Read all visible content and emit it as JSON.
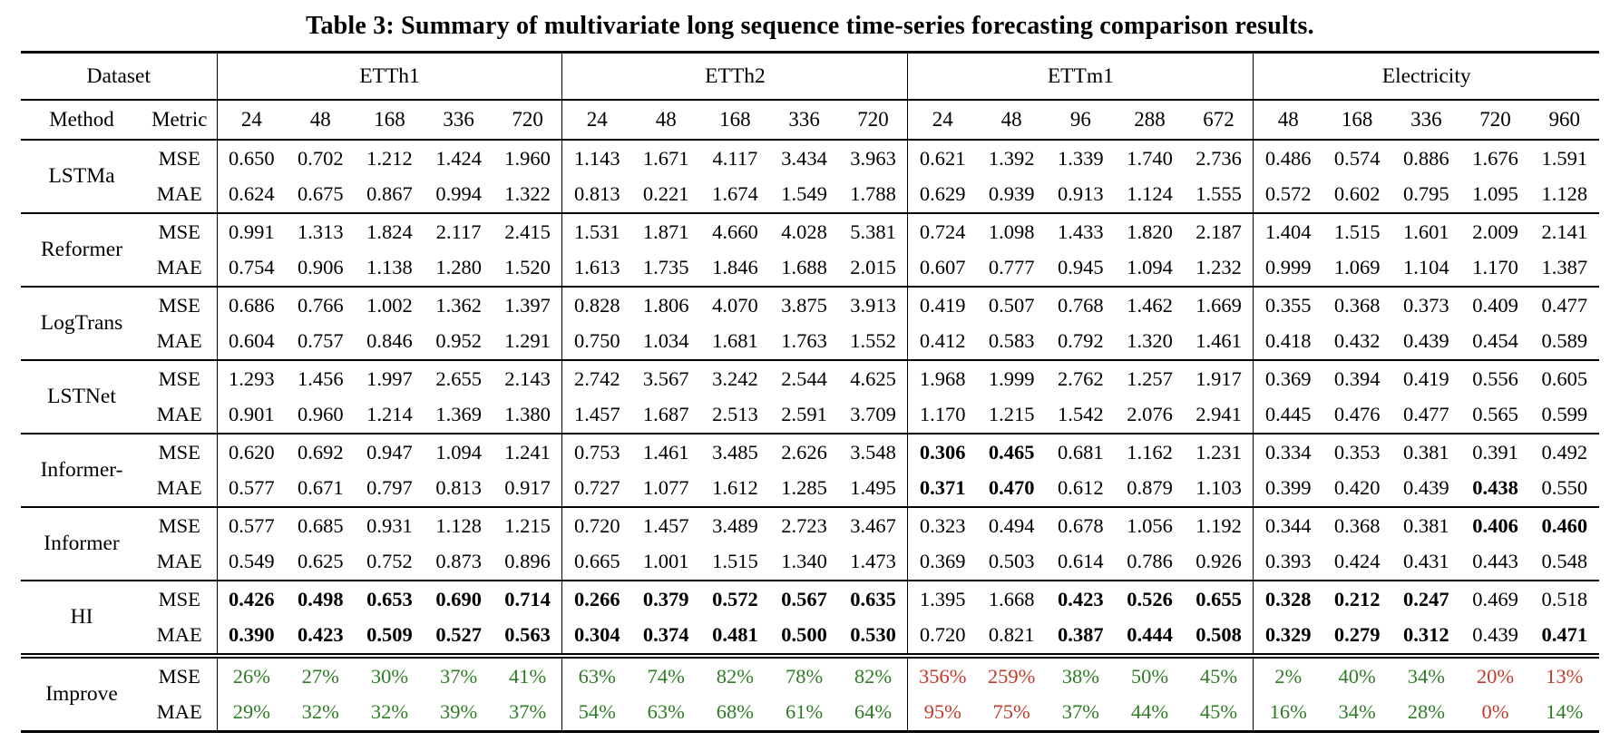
{
  "title": "Table 3: Summary of multivariate long sequence time-series forecasting comparison results.",
  "colors": {
    "improve_positive": "#2e7d25",
    "improve_negative": "#c23b2a",
    "text": "#000000"
  },
  "header": {
    "dataset_label": "Dataset",
    "method_label": "Method",
    "metric_label": "Metric",
    "groups": [
      {
        "name": "ETTh1",
        "horizons": [
          "24",
          "48",
          "168",
          "336",
          "720"
        ]
      },
      {
        "name": "ETTh2",
        "horizons": [
          "24",
          "48",
          "168",
          "336",
          "720"
        ]
      },
      {
        "name": "ETTm1",
        "horizons": [
          "24",
          "48",
          "96",
          "288",
          "672"
        ]
      },
      {
        "name": "Electricity",
        "horizons": [
          "48",
          "168",
          "336",
          "720",
          "960"
        ]
      }
    ]
  },
  "rows": [
    {
      "method": "LSTMa",
      "sub": [
        {
          "metric": "MSE",
          "values": [
            "0.650",
            "0.702",
            "1.212",
            "1.424",
            "1.960",
            "1.143",
            "1.671",
            "4.117",
            "3.434",
            "3.963",
            "0.621",
            "1.392",
            "1.339",
            "1.740",
            "2.736",
            "0.486",
            "0.574",
            "0.886",
            "1.676",
            "1.591"
          ],
          "bold": []
        },
        {
          "metric": "MAE",
          "values": [
            "0.624",
            "0.675",
            "0.867",
            "0.994",
            "1.322",
            "0.813",
            "0.221",
            "1.674",
            "1.549",
            "1.788",
            "0.629",
            "0.939",
            "0.913",
            "1.124",
            "1.555",
            "0.572",
            "0.602",
            "0.795",
            "1.095",
            "1.128"
          ],
          "bold": []
        }
      ]
    },
    {
      "method": "Reformer",
      "sub": [
        {
          "metric": "MSE",
          "values": [
            "0.991",
            "1.313",
            "1.824",
            "2.117",
            "2.415",
            "1.531",
            "1.871",
            "4.660",
            "4.028",
            "5.381",
            "0.724",
            "1.098",
            "1.433",
            "1.820",
            "2.187",
            "1.404",
            "1.515",
            "1.601",
            "2.009",
            "2.141"
          ],
          "bold": []
        },
        {
          "metric": "MAE",
          "values": [
            "0.754",
            "0.906",
            "1.138",
            "1.280",
            "1.520",
            "1.613",
            "1.735",
            "1.846",
            "1.688",
            "2.015",
            "0.607",
            "0.777",
            "0.945",
            "1.094",
            "1.232",
            "0.999",
            "1.069",
            "1.104",
            "1.170",
            "1.387"
          ],
          "bold": []
        }
      ]
    },
    {
      "method": "LogTrans",
      "sub": [
        {
          "metric": "MSE",
          "values": [
            "0.686",
            "0.766",
            "1.002",
            "1.362",
            "1.397",
            "0.828",
            "1.806",
            "4.070",
            "3.875",
            "3.913",
            "0.419",
            "0.507",
            "0.768",
            "1.462",
            "1.669",
            "0.355",
            "0.368",
            "0.373",
            "0.409",
            "0.477"
          ],
          "bold": []
        },
        {
          "metric": "MAE",
          "values": [
            "0.604",
            "0.757",
            "0.846",
            "0.952",
            "1.291",
            "0.750",
            "1.034",
            "1.681",
            "1.763",
            "1.552",
            "0.412",
            "0.583",
            "0.792",
            "1.320",
            "1.461",
            "0.418",
            "0.432",
            "0.439",
            "0.454",
            "0.589"
          ],
          "bold": []
        }
      ]
    },
    {
      "method": "LSTNet",
      "sub": [
        {
          "metric": "MSE",
          "values": [
            "1.293",
            "1.456",
            "1.997",
            "2.655",
            "2.143",
            "2.742",
            "3.567",
            "3.242",
            "2.544",
            "4.625",
            "1.968",
            "1.999",
            "2.762",
            "1.257",
            "1.917",
            "0.369",
            "0.394",
            "0.419",
            "0.556",
            "0.605"
          ],
          "bold": []
        },
        {
          "metric": "MAE",
          "values": [
            "0.901",
            "0.960",
            "1.214",
            "1.369",
            "1.380",
            "1.457",
            "1.687",
            "2.513",
            "2.591",
            "3.709",
            "1.170",
            "1.215",
            "1.542",
            "2.076",
            "2.941",
            "0.445",
            "0.476",
            "0.477",
            "0.565",
            "0.599"
          ],
          "bold": []
        }
      ]
    },
    {
      "method": "Informer-",
      "sub": [
        {
          "metric": "MSE",
          "values": [
            "0.620",
            "0.692",
            "0.947",
            "1.094",
            "1.241",
            "0.753",
            "1.461",
            "3.485",
            "2.626",
            "3.548",
            "0.306",
            "0.465",
            "0.681",
            "1.162",
            "1.231",
            "0.334",
            "0.353",
            "0.381",
            "0.391",
            "0.492"
          ],
          "bold": [
            10,
            11
          ]
        },
        {
          "metric": "MAE",
          "values": [
            "0.577",
            "0.671",
            "0.797",
            "0.813",
            "0.917",
            "0.727",
            "1.077",
            "1.612",
            "1.285",
            "1.495",
            "0.371",
            "0.470",
            "0.612",
            "0.879",
            "1.103",
            "0.399",
            "0.420",
            "0.439",
            "0.438",
            "0.550"
          ],
          "bold": [
            10,
            11,
            18
          ]
        }
      ]
    },
    {
      "method": "Informer",
      "sub": [
        {
          "metric": "MSE",
          "values": [
            "0.577",
            "0.685",
            "0.931",
            "1.128",
            "1.215",
            "0.720",
            "1.457",
            "3.489",
            "2.723",
            "3.467",
            "0.323",
            "0.494",
            "0.678",
            "1.056",
            "1.192",
            "0.344",
            "0.368",
            "0.381",
            "0.406",
            "0.460"
          ],
          "bold": [
            18,
            19
          ]
        },
        {
          "metric": "MAE",
          "values": [
            "0.549",
            "0.625",
            "0.752",
            "0.873",
            "0.896",
            "0.665",
            "1.001",
            "1.515",
            "1.340",
            "1.473",
            "0.369",
            "0.503",
            "0.614",
            "0.786",
            "0.926",
            "0.393",
            "0.424",
            "0.431",
            "0.443",
            "0.548"
          ],
          "bold": []
        }
      ]
    },
    {
      "method": "HI",
      "sub": [
        {
          "metric": "MSE",
          "values": [
            "0.426",
            "0.498",
            "0.653",
            "0.690",
            "0.714",
            "0.266",
            "0.379",
            "0.572",
            "0.567",
            "0.635",
            "1.395",
            "1.668",
            "0.423",
            "0.526",
            "0.655",
            "0.328",
            "0.212",
            "0.247",
            "0.469",
            "0.518"
          ],
          "bold": [
            0,
            1,
            2,
            3,
            4,
            5,
            6,
            7,
            8,
            9,
            12,
            13,
            14,
            15,
            16,
            17
          ]
        },
        {
          "metric": "MAE",
          "values": [
            "0.390",
            "0.423",
            "0.509",
            "0.527",
            "0.563",
            "0.304",
            "0.374",
            "0.481",
            "0.500",
            "0.530",
            "0.720",
            "0.821",
            "0.387",
            "0.444",
            "0.508",
            "0.329",
            "0.279",
            "0.312",
            "0.439",
            "0.471"
          ],
          "bold": [
            0,
            1,
            2,
            3,
            4,
            5,
            6,
            7,
            8,
            9,
            12,
            13,
            14,
            15,
            16,
            17,
            19
          ]
        }
      ]
    },
    {
      "method": "Improve",
      "sub": [
        {
          "metric": "MSE",
          "values": [
            "26%",
            "27%",
            "30%",
            "37%",
            "41%",
            "63%",
            "74%",
            "82%",
            "78%",
            "82%",
            "356%",
            "259%",
            "38%",
            "50%",
            "45%",
            "2%",
            "40%",
            "34%",
            "20%",
            "13%"
          ],
          "bold": [],
          "colors": [
            "g",
            "g",
            "g",
            "g",
            "g",
            "g",
            "g",
            "g",
            "g",
            "g",
            "r",
            "r",
            "g",
            "g",
            "g",
            "g",
            "g",
            "g",
            "r",
            "r"
          ]
        },
        {
          "metric": "MAE",
          "values": [
            "29%",
            "32%",
            "32%",
            "39%",
            "37%",
            "54%",
            "63%",
            "68%",
            "61%",
            "64%",
            "95%",
            "75%",
            "37%",
            "44%",
            "45%",
            "16%",
            "34%",
            "28%",
            "0%",
            "14%"
          ],
          "bold": [],
          "colors": [
            "g",
            "g",
            "g",
            "g",
            "g",
            "g",
            "g",
            "g",
            "g",
            "g",
            "r",
            "r",
            "g",
            "g",
            "g",
            "g",
            "g",
            "g",
            "r",
            "g"
          ]
        }
      ]
    }
  ]
}
